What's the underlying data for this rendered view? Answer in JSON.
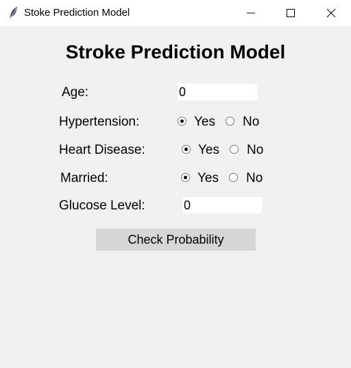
{
  "window": {
    "title": "Stoke Prediction Model",
    "icon": "feather-icon",
    "controls": [
      "minimize-icon",
      "maximize-icon",
      "close-icon"
    ]
  },
  "form": {
    "heading": "Stroke Prediction Model",
    "age": {
      "label": "Age:",
      "value": "0"
    },
    "hypertension": {
      "label": "Hypertension:",
      "yes": "Yes",
      "no": "No",
      "selected": "Yes"
    },
    "heart_disease": {
      "label": "Heart Disease:",
      "yes": "Yes",
      "no": "No",
      "selected": "Yes"
    },
    "married": {
      "label": "Married:",
      "yes": "Yes",
      "no": "No",
      "selected": "Yes"
    },
    "glucose": {
      "label": "Glucose Level:",
      "value": "0"
    },
    "submit_label": "Check Probability"
  },
  "colors": {
    "background": "#f0f0f0",
    "titlebar": "#ffffff",
    "button": "#d6d6d6"
  }
}
